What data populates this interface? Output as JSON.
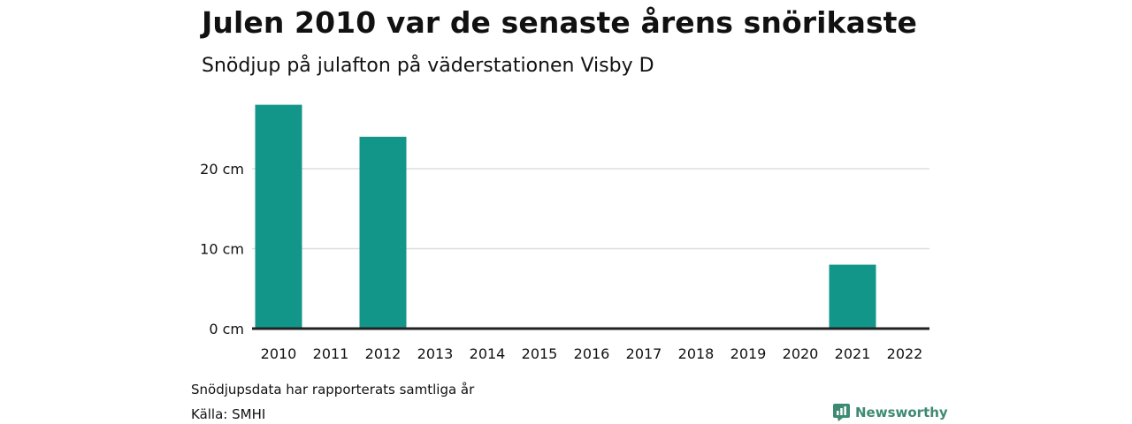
{
  "title": "Julen 2010 var de senaste årens snörikaste",
  "subtitle": "Snödjup på julafton på väderstationen Visby D",
  "footnote": "Snödjupsdata har rapporterats samtliga år",
  "source": "Källa: SMHI",
  "brand": {
    "name": "Newsworthy",
    "icon": "newsworthy-logo-icon",
    "color": "#3d8a73"
  },
  "colors": {
    "bar": "#13968a",
    "grid": "#dddddd",
    "baseline": "#222222",
    "text": "#111111"
  },
  "chart_data": {
    "type": "bar",
    "categories": [
      "2010",
      "2011",
      "2012",
      "2013",
      "2014",
      "2015",
      "2016",
      "2017",
      "2018",
      "2019",
      "2020",
      "2021",
      "2022"
    ],
    "values": [
      28,
      0,
      24,
      0,
      0,
      0,
      0,
      0,
      0,
      0,
      0,
      8,
      0
    ],
    "ylim": [
      0,
      28
    ],
    "yticks": [
      0,
      10,
      20
    ],
    "ytick_labels": [
      "0 cm",
      "10 cm",
      "20 cm"
    ],
    "grid": true,
    "legend": "none"
  }
}
